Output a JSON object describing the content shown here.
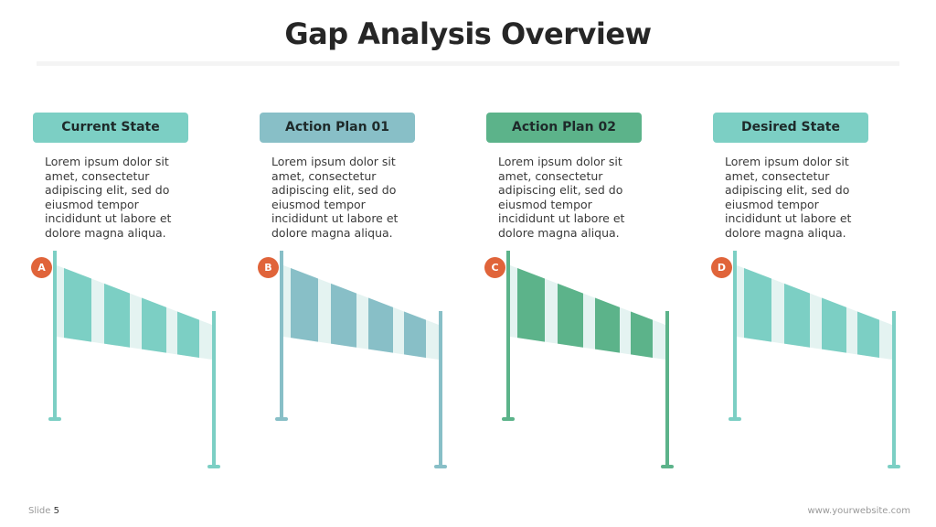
{
  "title": "Gap Analysis Overview",
  "columns": [
    {
      "label": "Current State",
      "badge": "A",
      "color": "#7ccfc4",
      "text": "Lorem ipsum dolor sit amet, consectetur adipiscing elit, sed do eiusmod tempor incididunt ut labore et dolore magna aliqua."
    },
    {
      "label": "Action Plan 01",
      "badge": "B",
      "color": "#88bfc7",
      "text": "Lorem ipsum dolor sit amet, consectetur adipiscing elit, sed do eiusmod tempor incididunt ut labore et dolore magna aliqua."
    },
    {
      "label": "Action Plan 02",
      "badge": "C",
      "color": "#5cb38a",
      "text": "Lorem ipsum dolor sit amet, consectetur adipiscing elit, sed do eiusmod tempor incididunt ut labore et dolore magna aliqua."
    },
    {
      "label": "Desired State",
      "badge": "D",
      "color": "#7ccfc4",
      "text": "Lorem ipsum dolor sit amet, consectetur adipiscing elit, sed do eiusmod tempor incididunt ut labore et dolore magna aliqua."
    }
  ],
  "colors": {
    "badge": "#e0643a",
    "stripe_light": "#e4f3f1"
  },
  "footer": {
    "slide_label": "Slide",
    "slide_number": "5",
    "website": "www.yourwebsite.com"
  }
}
